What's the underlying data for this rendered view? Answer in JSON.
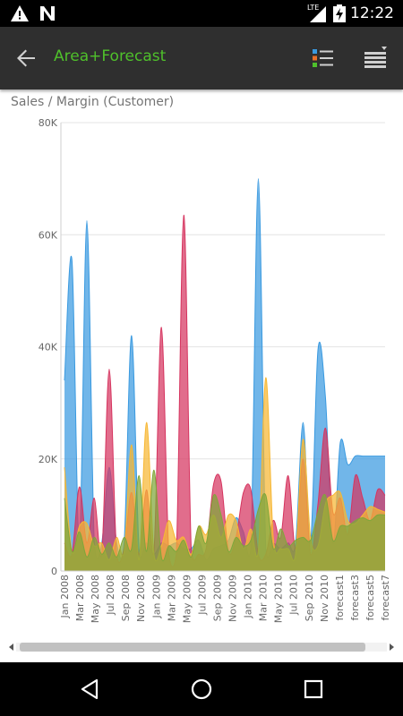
{
  "status_bar": {
    "time": "12:22",
    "network": "LTE",
    "icons": [
      "warning-icon",
      "n-notification-icon",
      "signal-icon",
      "battery-charging-icon"
    ]
  },
  "app_bar": {
    "title": "Area+Forecast",
    "back_icon": "arrow-back-icon",
    "legend_icon": "legend-list-icon",
    "menu_icon": "menu-list-icon",
    "title_color": "#4fc02b"
  },
  "chart_data": {
    "type": "area",
    "title": "Sales / Margin (Customer)",
    "xlabel": "",
    "ylabel": "",
    "ylim": [
      0,
      80000
    ],
    "y_ticks": [
      "0",
      "20K",
      "40K",
      "60K",
      "80K"
    ],
    "x_tick_labels": [
      "Jan 2008",
      "Mar 2008",
      "May 2008",
      "Jul 2008",
      "Sep 2008",
      "Nov 2008",
      "Jan 2009",
      "Mar 2009",
      "May 2009",
      "Jul 2009",
      "Sep 2009",
      "Nov 2009",
      "Jan 2010",
      "Mar 2010",
      "May 2010",
      "Jul 2010",
      "Sep 2010",
      "Nov 2010",
      "forecast1",
      "forecast3",
      "forecast5",
      "forecast7"
    ],
    "grid": true,
    "series": [
      {
        "color": "#3a9ae0",
        "values": [
          34000,
          55500,
          5000,
          62500,
          5000,
          5000,
          18500,
          5000,
          5000,
          42000,
          4000,
          5000,
          3000,
          5000,
          4500,
          5000,
          4000,
          4000,
          5500,
          2000,
          4000,
          4500,
          5500,
          9500,
          7000,
          4000,
          70000,
          4000,
          5000,
          4000,
          5000,
          5000,
          26500,
          5000,
          39500,
          31000,
          5000,
          23000,
          19000,
          20500,
          20500,
          20500,
          20500,
          20500
        ]
      },
      {
        "color": "#d6345f",
        "values": [
          5000,
          3000,
          15000,
          5000,
          13000,
          3000,
          36000,
          3000,
          4000,
          14000,
          3000,
          14500,
          3500,
          43500,
          3000,
          3000,
          63500,
          4000,
          3000,
          4000,
          15500,
          16000,
          3500,
          6000,
          14000,
          14500,
          3000,
          3000,
          9000,
          6000,
          17000,
          4000,
          20000,
          3000,
          12000,
          25500,
          10500,
          13000,
          6500,
          17000,
          13000,
          9000,
          14500,
          13500
        ]
      },
      {
        "color": "#f7b733",
        "values": [
          18500,
          3500,
          8000,
          8500,
          4500,
          5000,
          2000,
          6000,
          3500,
          22500,
          2000,
          26500,
          3000,
          4500,
          9000,
          5500,
          6000,
          3000,
          8000,
          6500,
          10000,
          6000,
          10000,
          9000,
          4000,
          7500,
          3500,
          34500,
          6000,
          4000,
          4000,
          3000,
          23500,
          6000,
          4500,
          12000,
          13500,
          14000,
          9000,
          8500,
          10000,
          11500,
          11000,
          10500
        ]
      },
      {
        "color": "#7fa63a",
        "values": [
          13000,
          3500,
          7000,
          2500,
          6000,
          3000,
          5000,
          2500,
          6000,
          4000,
          17000,
          3500,
          18000,
          2500,
          4500,
          3500,
          5500,
          2500,
          8000,
          5000,
          13500,
          10000,
          3500,
          6000,
          4500,
          5500,
          11000,
          13500,
          4000,
          7500,
          4500,
          5500,
          6000,
          5500,
          10500,
          13500,
          5500,
          8000,
          8000,
          9000,
          9500,
          9000,
          10000,
          10000
        ]
      }
    ]
  },
  "nav_bar": {
    "icons": [
      "back-triangle-icon",
      "home-circle-icon",
      "recents-square-icon"
    ]
  }
}
